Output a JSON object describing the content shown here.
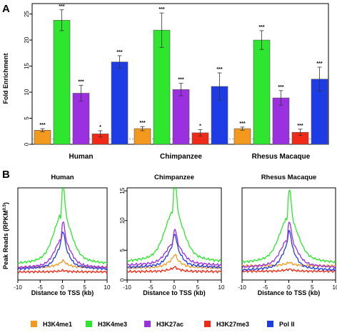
{
  "colors": {
    "H3K4me1": "#F39A1E",
    "H3K4me3": "#2EE62E",
    "H3K27ac": "#9B30E0",
    "H3K27me3": "#F02A16",
    "Pol II": "#1E3CE6"
  },
  "legend": {
    "items": [
      "H3K4me1",
      "H3K4me3",
      "H3K27ac",
      "H3K27me3",
      "Pol II"
    ]
  },
  "panelA": {
    "letter": "A",
    "ylabel": "Fold Enrichment",
    "yticks": [
      "0",
      "5",
      "10",
      "15",
      "20",
      "25"
    ]
  },
  "panelB": {
    "letter": "B",
    "ylabel": "Peak Reads (RPKM",
    "ylabel_sup": "0.5",
    "ylabel_close": ")",
    "xlabel": "Distance to TSS (kb)",
    "xticks": [
      "-10",
      "-5",
      "0",
      "5",
      "10"
    ],
    "yticks": [
      "0",
      "5",
      "10",
      "15"
    ]
  },
  "chart_data": [
    {
      "type": "bar",
      "categories": [
        "Human",
        "Chimpanzee",
        "Rhesus Macaque"
      ],
      "ylabel": "Fold Enrichment",
      "ylim": [
        0,
        27
      ],
      "reference_line": 1,
      "series": [
        {
          "name": "H3K4me1",
          "values": [
            2.7,
            3.0,
            3.0
          ],
          "errors": [
            0.3,
            0.4,
            0.3
          ],
          "significance": [
            "***",
            "***",
            "***"
          ]
        },
        {
          "name": "H3K4me3",
          "values": [
            23.8,
            21.9,
            20.0
          ],
          "errors": [
            2.0,
            3.3,
            1.8
          ],
          "significance": [
            "***",
            "***",
            "***"
          ]
        },
        {
          "name": "H3K27ac",
          "values": [
            9.8,
            10.5,
            8.9
          ],
          "errors": [
            1.5,
            1.2,
            1.4
          ],
          "significance": [
            "***",
            "***",
            "***"
          ]
        },
        {
          "name": "H3K27me3",
          "values": [
            2.0,
            2.2,
            2.3
          ],
          "errors": [
            0.6,
            0.6,
            0.6
          ],
          "significance": [
            "*",
            "*",
            "***"
          ]
        },
        {
          "name": "Pol II",
          "values": [
            15.8,
            11.1,
            12.5
          ],
          "errors": [
            1.2,
            2.6,
            2.3
          ],
          "significance": [
            "***",
            "***",
            "***"
          ]
        }
      ]
    },
    {
      "type": "line",
      "title": "Human",
      "xlabel": "Distance to TSS (kb)",
      "xlim": [
        -10,
        10
      ],
      "ylim": [
        0,
        17
      ],
      "series": [
        {
          "name": "H3K4me1",
          "baseline": 2.3,
          "peak": 3.3
        },
        {
          "name": "H3K4me3",
          "baseline": 2.8,
          "peak": 14.6
        },
        {
          "name": "H3K27ac",
          "baseline": 2.1,
          "peak": 9.0
        },
        {
          "name": "H3K27me3",
          "baseline": 1.5,
          "peak": 1.7
        },
        {
          "name": "Pol II",
          "baseline": 1.9,
          "peak": 7.5
        }
      ]
    },
    {
      "type": "line",
      "title": "Chimpanzee",
      "xlabel": "Distance to TSS (kb)",
      "xlim": [
        -10,
        10
      ],
      "ylim": [
        0,
        15.5
      ],
      "series": [
        {
          "name": "H3K4me1",
          "baseline": 2.0,
          "peak": 3.8
        },
        {
          "name": "H3K4me3",
          "baseline": 2.9,
          "peak": 14.0
        },
        {
          "name": "H3K27ac",
          "baseline": 2.4,
          "peak": 7.3
        },
        {
          "name": "H3K27me3",
          "baseline": 1.4,
          "peak": 2.0
        },
        {
          "name": "Pol II",
          "baseline": 2.0,
          "peak": 6.5
        }
      ]
    },
    {
      "type": "line",
      "title": "Rhesus Macaque",
      "xlabel": "Distance to TSS (kb)",
      "xlim": [
        -10,
        10
      ],
      "ylim": [
        0,
        17
      ],
      "series": [
        {
          "name": "H3K4me1",
          "baseline": 2.6,
          "peak": 3.1
        },
        {
          "name": "H3K4me3",
          "baseline": 3.0,
          "peak": 13.9
        },
        {
          "name": "H3K27ac",
          "baseline": 2.2,
          "peak": 9.0
        },
        {
          "name": "H3K27me3",
          "baseline": 1.6,
          "peak": 1.9
        },
        {
          "name": "Pol II",
          "baseline": 1.7,
          "peak": 7.5
        }
      ]
    }
  ]
}
